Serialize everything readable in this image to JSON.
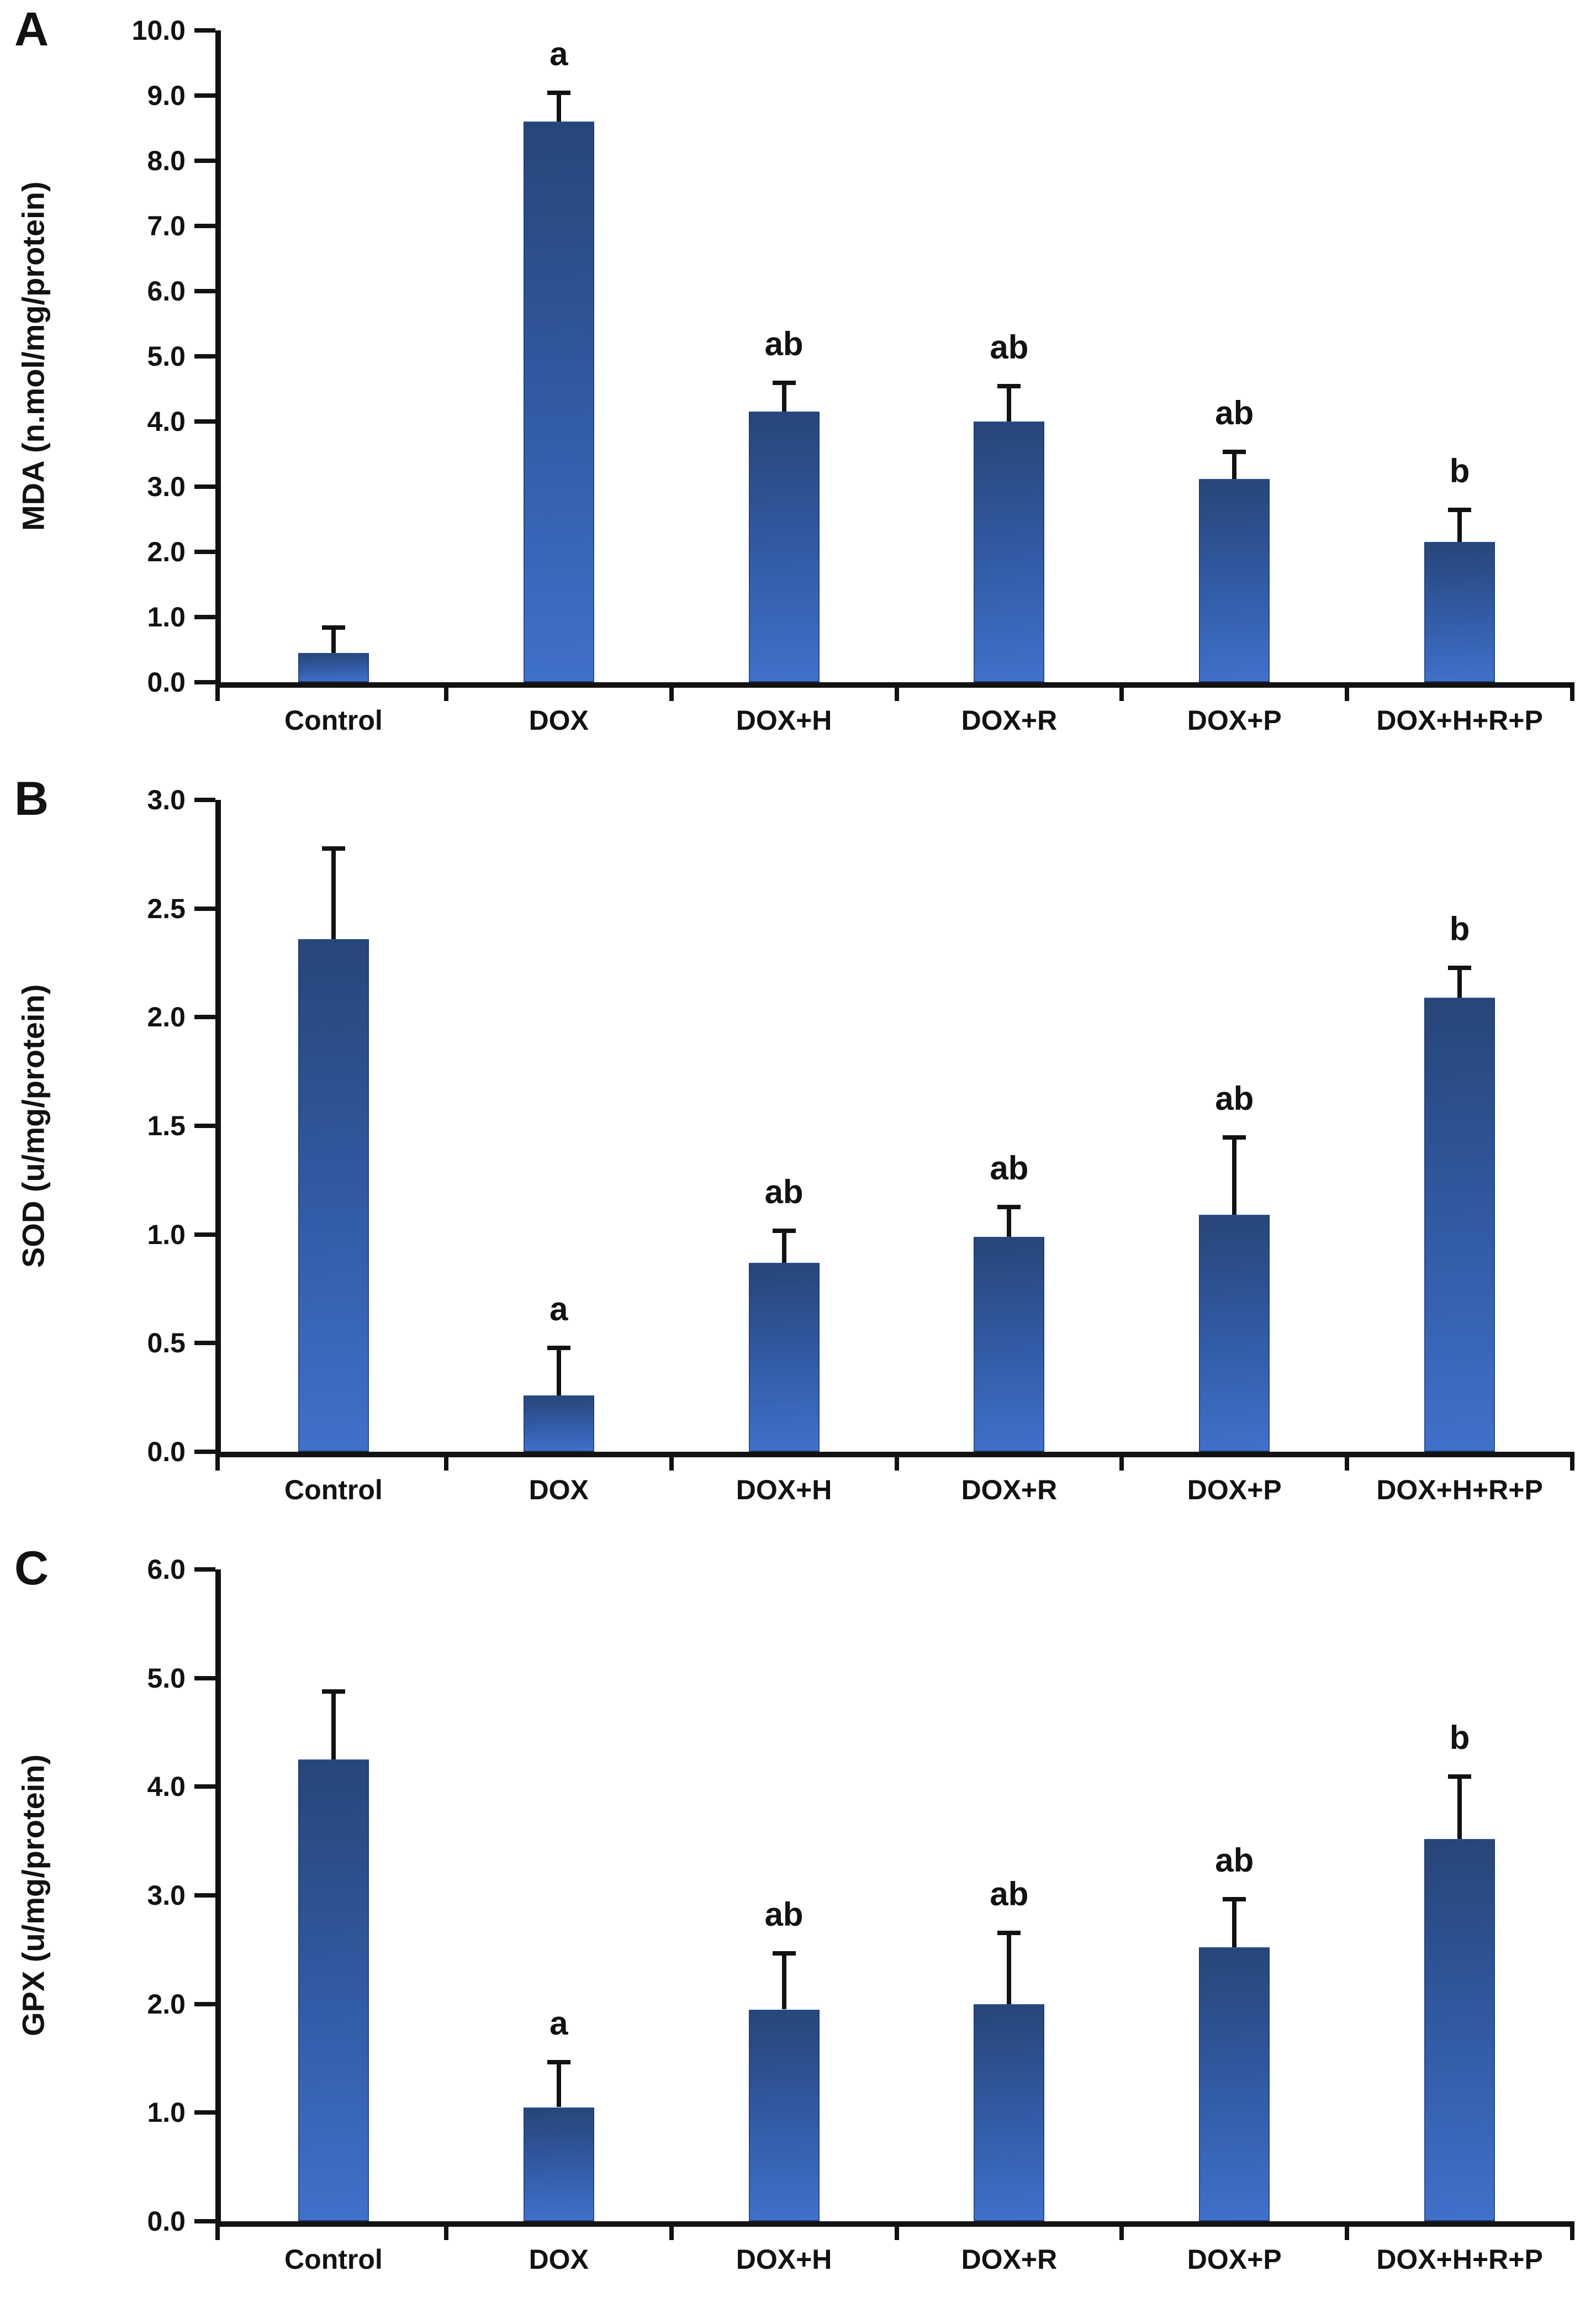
{
  "colors": {
    "background": "#ffffff",
    "axis": "#121212",
    "text": "#121212",
    "bar_gradient_top": "#274678",
    "bar_gradient_mid": "#30589f",
    "bar_gradient_bottom": "#4170cb"
  },
  "chart_data": [
    {
      "type": "bar",
      "panel_label": "A",
      "ylabel": "MDA (n.mol/mg/protein)",
      "ylim": [
        0,
        10
      ],
      "ytick_step": 1.0,
      "yticks": [
        "10.0",
        "9.0",
        "8.0",
        "7.0",
        "6.0",
        "5.0",
        "4.0",
        "3.0",
        "2.0",
        "1.0",
        "0.0"
      ],
      "categories": [
        "Control",
        "DOX",
        "DOX+H",
        "DOX+R",
        "DOX+P",
        "DOX+H+R+P"
      ],
      "values": [
        0.45,
        8.6,
        4.15,
        4.0,
        3.12,
        2.15
      ],
      "error_plus": [
        0.4,
        0.45,
        0.45,
        0.55,
        0.42,
        0.5
      ],
      "sig_letters": [
        "",
        "a",
        "ab",
        "ab",
        "ab",
        "b"
      ],
      "grid": false,
      "legend": false
    },
    {
      "type": "bar",
      "panel_label": "B",
      "ylabel": "SOD (u/mg/protein)",
      "ylim": [
        0,
        3
      ],
      "ytick_step": 0.5,
      "yticks": [
        "3.0",
        "2.5",
        "2.0",
        "1.5",
        "1.0",
        "0.5",
        "0.0"
      ],
      "categories": [
        "Control",
        "DOX",
        "DOX+H",
        "DOX+R",
        "DOX+P",
        "DOX+H+R+P"
      ],
      "values": [
        2.36,
        0.26,
        0.87,
        0.99,
        1.09,
        2.09
      ],
      "error_plus": [
        0.42,
        0.22,
        0.15,
        0.14,
        0.36,
        0.14
      ],
      "sig_letters": [
        "",
        "a",
        "ab",
        "ab",
        "ab",
        "b"
      ],
      "grid": false,
      "legend": false
    },
    {
      "type": "bar",
      "panel_label": "C",
      "ylabel": "GPX (u/mg/protein)",
      "ylim": [
        0,
        6
      ],
      "ytick_step": 1.0,
      "yticks": [
        "6.0",
        "5.0",
        "4.0",
        "3.0",
        "2.0",
        "1.0",
        "0.0"
      ],
      "categories": [
        "Control",
        "DOX",
        "DOX+H",
        "DOX+R",
        "DOX+P",
        "DOX+H+R+P"
      ],
      "values": [
        4.25,
        1.05,
        1.95,
        2.0,
        2.52,
        3.52
      ],
      "error_plus": [
        0.63,
        0.42,
        0.52,
        0.66,
        0.45,
        0.58
      ],
      "sig_letters": [
        "",
        "a",
        "ab",
        "ab",
        "ab",
        "b"
      ],
      "grid": false,
      "legend": false
    }
  ]
}
